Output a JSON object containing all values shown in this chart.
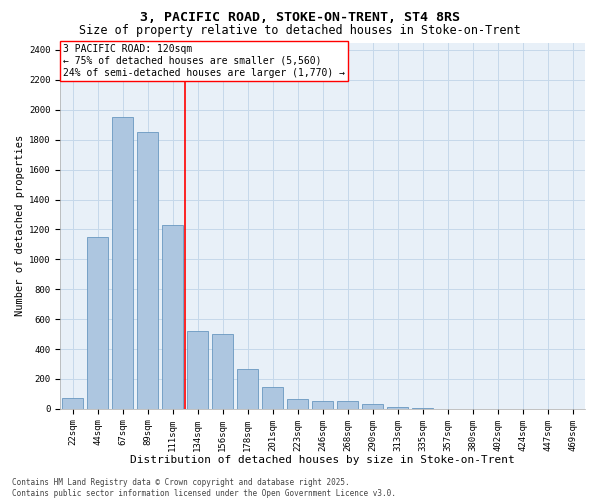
{
  "title1": "3, PACIFIC ROAD, STOKE-ON-TRENT, ST4 8RS",
  "title2": "Size of property relative to detached houses in Stoke-on-Trent",
  "xlabel": "Distribution of detached houses by size in Stoke-on-Trent",
  "ylabel": "Number of detached properties",
  "categories": [
    "22sqm",
    "44sqm",
    "67sqm",
    "89sqm",
    "111sqm",
    "134sqm",
    "156sqm",
    "178sqm",
    "201sqm",
    "223sqm",
    "246sqm",
    "268sqm",
    "290sqm",
    "313sqm",
    "335sqm",
    "357sqm",
    "380sqm",
    "402sqm",
    "424sqm",
    "447sqm",
    "469sqm"
  ],
  "values": [
    70,
    1150,
    1950,
    1850,
    1230,
    520,
    500,
    265,
    145,
    65,
    55,
    55,
    30,
    10,
    5,
    2,
    2,
    1,
    1,
    1,
    1
  ],
  "bar_color": "#adc6e0",
  "bar_edge_color": "#6898c0",
  "grid_color": "#c5d8ea",
  "background_color": "#e8f0f8",
  "vline_x_index": 4.5,
  "vline_color": "red",
  "annotation_text": "3 PACIFIC ROAD: 120sqm\n← 75% of detached houses are smaller (5,560)\n24% of semi-detached houses are larger (1,770) →",
  "annotation_box_color": "white",
  "annotation_box_edge": "red",
  "ylim": [
    0,
    2450
  ],
  "yticks": [
    0,
    200,
    400,
    600,
    800,
    1000,
    1200,
    1400,
    1600,
    1800,
    2000,
    2200,
    2400
  ],
  "footer_text": "Contains HM Land Registry data © Crown copyright and database right 2025.\nContains public sector information licensed under the Open Government Licence v3.0.",
  "title_fontsize": 9.5,
  "subtitle_fontsize": 8.5,
  "xlabel_fontsize": 8,
  "ylabel_fontsize": 7.5,
  "tick_fontsize": 6.5,
  "annotation_fontsize": 7,
  "footer_fontsize": 5.5
}
